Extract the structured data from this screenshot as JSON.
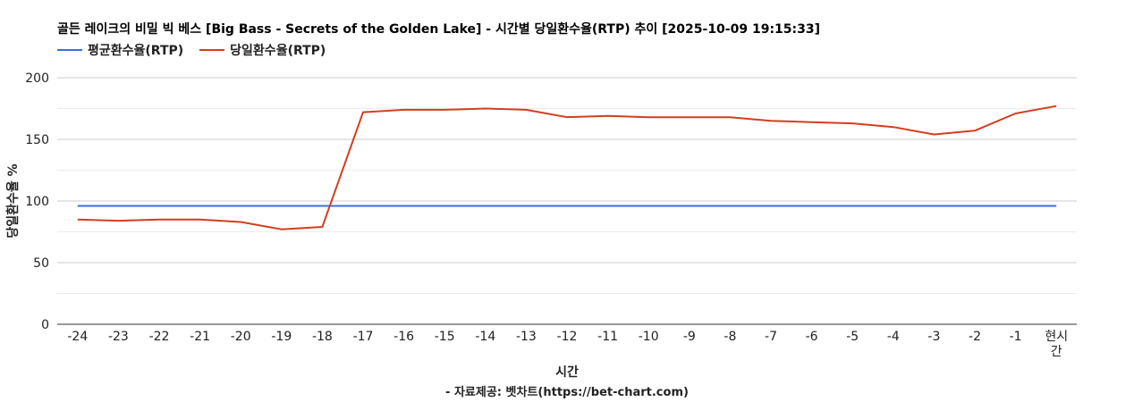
{
  "chart_data": {
    "type": "line",
    "title": "골든 레이크의 비밀 빅 베스 [Big Bass - Secrets of the Golden Lake] - 시간별 당일환수율(RTP) 추이 [2025-10-09 19:15:33]",
    "xlabel": "시간",
    "ylabel": "당일환수율 %",
    "footer": "- 자료제공: 벳차트(https://bet-chart.com)",
    "ylim": [
      0,
      200
    ],
    "yticks": [
      "0",
      "50",
      "100",
      "150",
      "200"
    ],
    "categories": [
      "-24",
      "-23",
      "-22",
      "-21",
      "-20",
      "-19",
      "-18",
      "-17",
      "-16",
      "-15",
      "-14",
      "-13",
      "-12",
      "-11",
      "-10",
      "-9",
      "-8",
      "-7",
      "-6",
      "-5",
      "-4",
      "-3",
      "-2",
      "-1",
      "현시간"
    ],
    "series": [
      {
        "name": "평균환수율(RTP)",
        "color": "#3a6fd8",
        "values": [
          96,
          96,
          96,
          96,
          96,
          96,
          96,
          96,
          96,
          96,
          96,
          96,
          96,
          96,
          96,
          96,
          96,
          96,
          96,
          96,
          96,
          96,
          96,
          96,
          96
        ]
      },
      {
        "name": "당일환수율(RTP)",
        "color": "#d23f1f",
        "values": [
          85,
          84,
          85,
          85,
          83,
          77,
          79,
          172,
          174,
          174,
          175,
          174,
          168,
          169,
          168,
          168,
          168,
          165,
          164,
          163,
          160,
          154,
          157,
          171,
          177
        ]
      }
    ],
    "grid": true,
    "legend_position": "top-left"
  }
}
